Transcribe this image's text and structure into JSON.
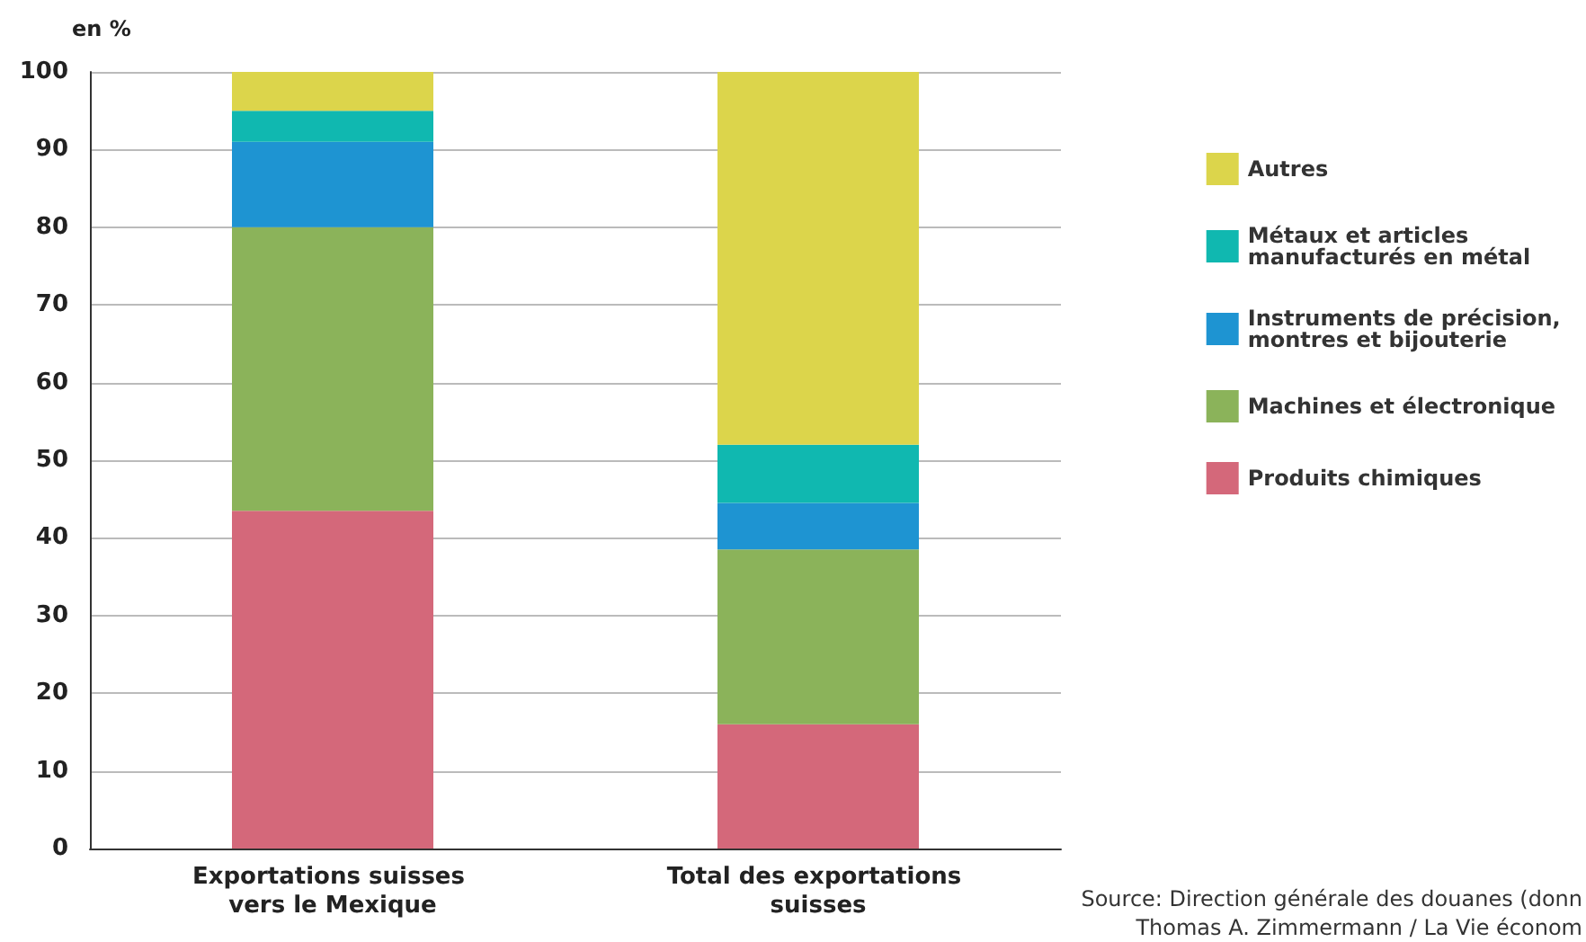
{
  "chart_data": {
    "type": "bar",
    "stacked": true,
    "ylabel": "en %",
    "categories": [
      "Exportations suisses vers le Mexique",
      "Total des exportations suisses"
    ],
    "series": [
      {
        "name": "Produits chimiques",
        "color": "#d4687a",
        "values": [
          43.5,
          16
        ]
      },
      {
        "name": "Machines et électronique",
        "color": "#8bb35a",
        "values": [
          36.5,
          22.5
        ]
      },
      {
        "name": "Instruments de précision, montres et bijouterie",
        "color": "#1e94d2",
        "values": [
          11,
          6
        ]
      },
      {
        "name": "Métaux et articles manufacturés en métal",
        "color": "#10b8b0",
        "values": [
          4,
          7.5
        ]
      },
      {
        "name": "Autres",
        "color": "#dcd54b",
        "values": [
          5,
          48
        ]
      }
    ],
    "ylim": [
      0,
      100
    ],
    "yticks": [
      0,
      10,
      20,
      30,
      40,
      50,
      60,
      70,
      80,
      90,
      100
    ],
    "grid": "y",
    "legend": "right",
    "annotations": [
      "Source: Direction générale des douanes (donn",
      "Thomas A. Zimmermann / La Vie économ"
    ]
  }
}
